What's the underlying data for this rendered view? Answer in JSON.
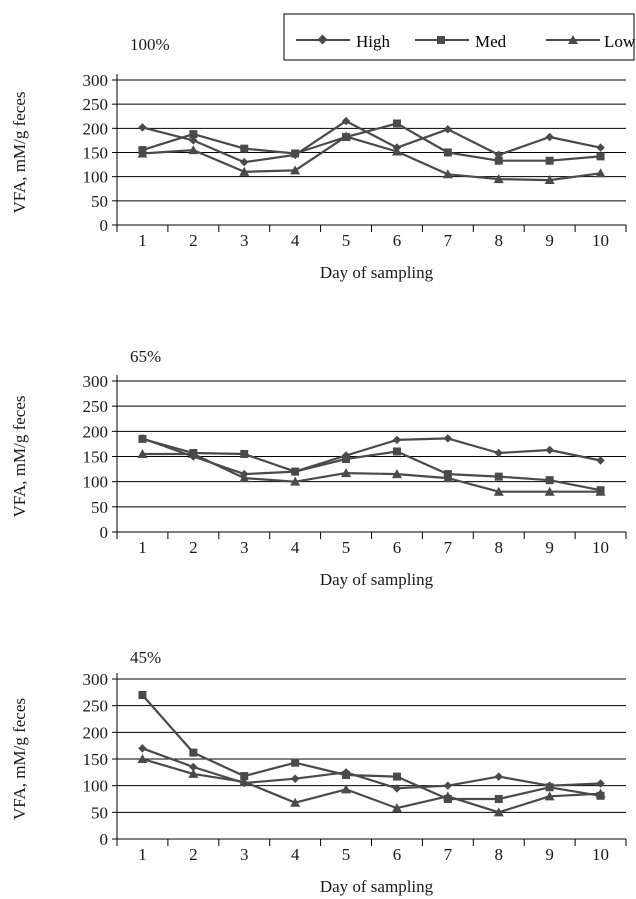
{
  "legend": {
    "entries": [
      {
        "label": "High",
        "marker": "diamond"
      },
      {
        "label": "Med",
        "marker": "square"
      },
      {
        "label": "Low",
        "marker": "triangle"
      }
    ]
  },
  "colors": {
    "line": "#4a4a4a",
    "grid": "#000000",
    "axis": "#000000",
    "text": "#1a1a1a"
  },
  "chart_data": [
    {
      "type": "line",
      "title": "100%",
      "xlabel": "Day of sampling",
      "ylabel": "VFA, mM/g feces",
      "ylim": [
        0,
        300
      ],
      "yticks": [
        0,
        50,
        100,
        150,
        200,
        250,
        300
      ],
      "categories": [
        "1",
        "2",
        "3",
        "4",
        "5",
        "6",
        "7",
        "8",
        "9",
        "10"
      ],
      "grid": "horizontal",
      "legend": "top-right",
      "series": [
        {
          "name": "High",
          "marker": "diamond",
          "values": [
            202,
            175,
            130,
            145,
            215,
            160,
            198,
            145,
            182,
            160
          ]
        },
        {
          "name": "Med",
          "marker": "square",
          "values": [
            155,
            188,
            158,
            148,
            182,
            210,
            150,
            133,
            133,
            142
          ]
        },
        {
          "name": "Low",
          "marker": "triangle",
          "values": [
            148,
            155,
            110,
            113,
            183,
            152,
            105,
            95,
            93,
            107
          ]
        }
      ]
    },
    {
      "type": "line",
      "title": "65%",
      "xlabel": "Day of sampling",
      "ylabel": "VFA, mM/g feces",
      "ylim": [
        0,
        300
      ],
      "yticks": [
        0,
        50,
        100,
        150,
        200,
        250,
        300
      ],
      "categories": [
        "1",
        "2",
        "3",
        "4",
        "5",
        "6",
        "7",
        "8",
        "9",
        "10"
      ],
      "grid": "horizontal",
      "series": [
        {
          "name": "High",
          "marker": "diamond",
          "values": [
            186,
            150,
            115,
            120,
            152,
            183,
            186,
            157,
            163,
            142
          ]
        },
        {
          "name": "Med",
          "marker": "square",
          "values": [
            185,
            157,
            155,
            120,
            145,
            160,
            115,
            110,
            103,
            83
          ]
        },
        {
          "name": "Low",
          "marker": "triangle",
          "values": [
            155,
            155,
            107,
            100,
            117,
            115,
            107,
            80,
            80,
            80
          ]
        }
      ]
    },
    {
      "type": "line",
      "title": "45%",
      "xlabel": "Day of sampling",
      "ylabel": "VFA, mM/g feces",
      "ylim": [
        0,
        300
      ],
      "yticks": [
        0,
        50,
        100,
        150,
        200,
        250,
        300
      ],
      "categories": [
        "1",
        "2",
        "3",
        "4",
        "5",
        "6",
        "7",
        "8",
        "9",
        "10"
      ],
      "grid": "horizontal",
      "series": [
        {
          "name": "High",
          "marker": "diamond",
          "values": [
            170,
            135,
            105,
            113,
            125,
            95,
            100,
            117,
            100,
            104
          ]
        },
        {
          "name": "Med",
          "marker": "square",
          "values": [
            270,
            162,
            118,
            143,
            120,
            117,
            75,
            75,
            97,
            81
          ]
        },
        {
          "name": "Low",
          "marker": "triangle",
          "values": [
            150,
            122,
            107,
            68,
            93,
            58,
            80,
            50,
            80,
            85
          ]
        }
      ]
    }
  ]
}
